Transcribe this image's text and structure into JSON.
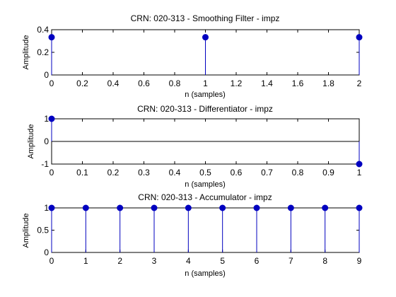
{
  "colors": {
    "stem": "#0000c0",
    "marker": "#0000c0",
    "baseline": "#000000",
    "axes": "#000000",
    "background": "#ffffff"
  },
  "chart_data": [
    {
      "type": "stem",
      "title": "CRN: 020-313 - Smoothing Filter - impz",
      "xlabel": "n (samples)",
      "ylabel": "Amplitude",
      "xlim": [
        0,
        2
      ],
      "ylim": [
        0,
        0.4
      ],
      "xticks": [
        0,
        0.2,
        0.4,
        0.6,
        0.8,
        1,
        1.2,
        1.4,
        1.6,
        1.8,
        2
      ],
      "xticklabels": [
        "0",
        "0.2",
        "0.4",
        "0.6",
        "0.8",
        "1",
        "1.2",
        "1.4",
        "1.6",
        "1.8",
        "2"
      ],
      "yticks": [
        0,
        0.2,
        0.4
      ],
      "yticklabels": [
        "0",
        "0.2",
        "0.4"
      ],
      "x": [
        0,
        1,
        2
      ],
      "y": [
        0.3333,
        0.3333,
        0.3333
      ],
      "grid": false
    },
    {
      "type": "stem",
      "title": "CRN: 020-313 - Differentiator - impz",
      "xlabel": "n (samples)",
      "ylabel": "Amplitude",
      "xlim": [
        0,
        1
      ],
      "ylim": [
        -1,
        1
      ],
      "xticks": [
        0,
        0.1,
        0.2,
        0.3,
        0.4,
        0.5,
        0.6,
        0.7,
        0.8,
        0.9,
        1
      ],
      "xticklabels": [
        "0",
        "0.1",
        "0.2",
        "0.3",
        "0.4",
        "0.5",
        "0.6",
        "0.7",
        "0.8",
        "0.9",
        "1"
      ],
      "yticks": [
        -1,
        0,
        1
      ],
      "yticklabels": [
        "-1",
        "0",
        "1"
      ],
      "x": [
        0,
        1
      ],
      "y": [
        1,
        -1
      ],
      "grid": false
    },
    {
      "type": "stem",
      "title": "CRN: 020-313 - Accumulator - impz",
      "xlabel": "n (samples)",
      "ylabel": "Amplitude",
      "xlim": [
        0,
        9
      ],
      "ylim": [
        0,
        1
      ],
      "xticks": [
        0,
        1,
        2,
        3,
        4,
        5,
        6,
        7,
        8,
        9
      ],
      "xticklabels": [
        "0",
        "1",
        "2",
        "3",
        "4",
        "5",
        "6",
        "7",
        "8",
        "9"
      ],
      "yticks": [
        0,
        0.5,
        1
      ],
      "yticklabels": [
        "0",
        "0.5",
        "1"
      ],
      "x": [
        0,
        1,
        2,
        3,
        4,
        5,
        6,
        7,
        8,
        9
      ],
      "y": [
        1,
        1,
        1,
        1,
        1,
        1,
        1,
        1,
        1,
        1
      ],
      "grid": false
    }
  ]
}
